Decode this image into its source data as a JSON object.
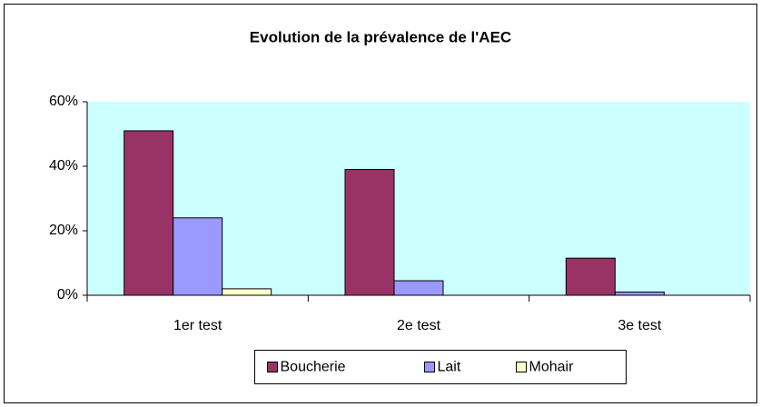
{
  "chart_data": {
    "type": "bar",
    "title": "Evolution de la prévalence de l'AEC",
    "categories": [
      "1er test",
      "2e test",
      "3e test"
    ],
    "series": [
      {
        "name": "Boucherie",
        "color": "#993366",
        "values": [
          51,
          39,
          11.5
        ]
      },
      {
        "name": "Lait",
        "color": "#9999ff",
        "values": [
          24,
          4.5,
          1
        ]
      },
      {
        "name": "Mohair",
        "color": "#ffffcc",
        "values": [
          2,
          0,
          0
        ]
      }
    ],
    "ylim": [
      0,
      60
    ],
    "yticks": [
      {
        "value": 0,
        "label": "0%"
      },
      {
        "value": 20,
        "label": "20%"
      },
      {
        "value": 40,
        "label": "40%"
      },
      {
        "value": 60,
        "label": "60%"
      }
    ],
    "plot_background": "#ccffff",
    "legend": "bottom"
  }
}
